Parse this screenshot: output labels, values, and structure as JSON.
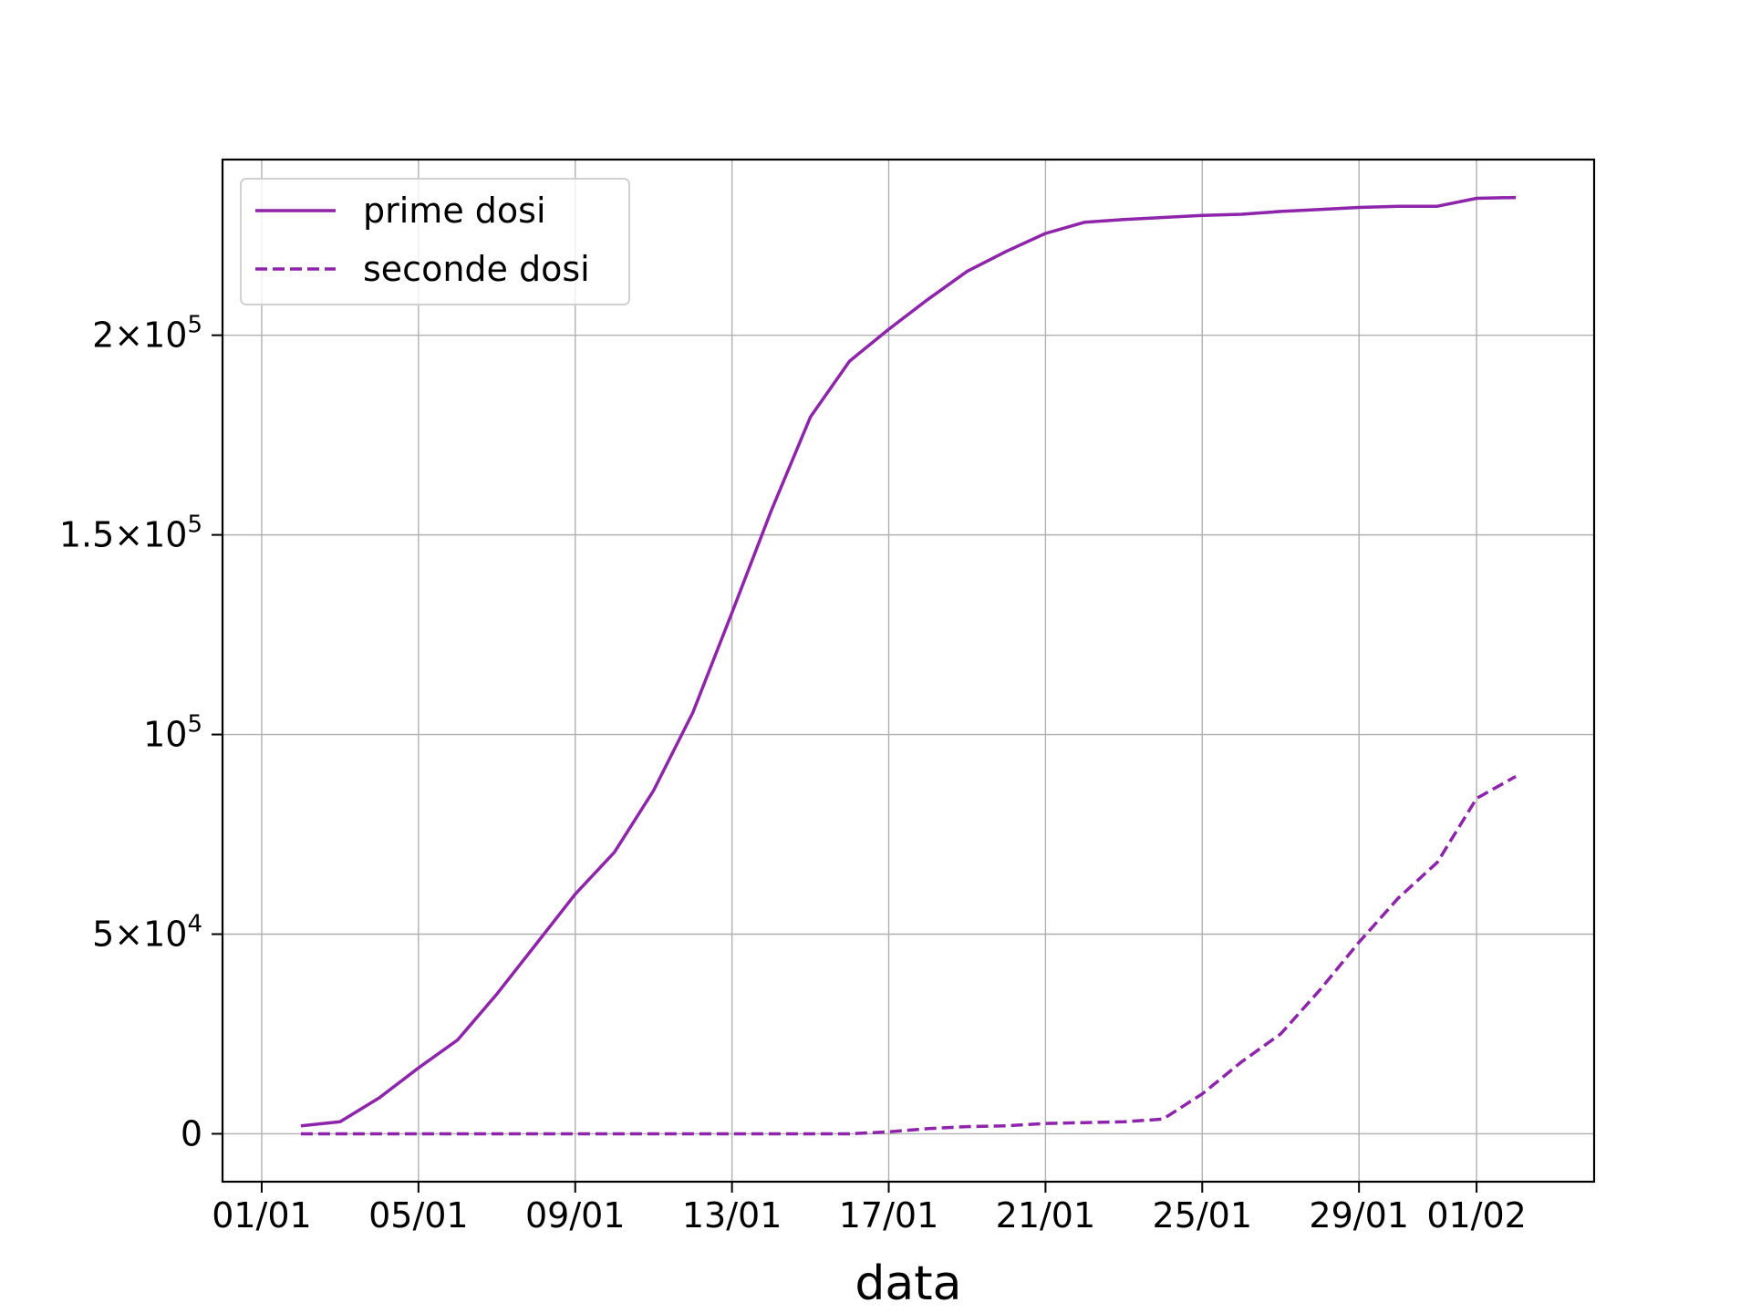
{
  "chart_data": {
    "type": "line",
    "title": "",
    "xlabel": "data",
    "ylabel": "",
    "grid": true,
    "legend_placement": "upper-left",
    "x_range": [
      "2020-12-31",
      "2021-02-04"
    ],
    "ylim": [
      -12000,
      244000
    ],
    "x_ticks": [
      {
        "date": "2021-01-01",
        "label": "01/01"
      },
      {
        "date": "2021-01-05",
        "label": "05/01"
      },
      {
        "date": "2021-01-09",
        "label": "09/01"
      },
      {
        "date": "2021-01-13",
        "label": "13/01"
      },
      {
        "date": "2021-01-17",
        "label": "17/01"
      },
      {
        "date": "2021-01-21",
        "label": "21/01"
      },
      {
        "date": "2021-01-25",
        "label": "25/01"
      },
      {
        "date": "2021-01-29",
        "label": "29/01"
      },
      {
        "date": "2021-02-01",
        "label": "01/02"
      }
    ],
    "y_ticks": [
      {
        "value": 0,
        "mant": "0",
        "exp": ""
      },
      {
        "value": 50000,
        "mant": "5×10",
        "exp": "4"
      },
      {
        "value": 100000,
        "mant": "10",
        "exp": "5"
      },
      {
        "value": 150000,
        "mant": "1.5×10",
        "exp": "5"
      },
      {
        "value": 200000,
        "mant": "2×10",
        "exp": "5"
      }
    ],
    "x": [
      "2021-01-02",
      "2021-01-03",
      "2021-01-04",
      "2021-01-05",
      "2021-01-06",
      "2021-01-07",
      "2021-01-08",
      "2021-01-09",
      "2021-01-10",
      "2021-01-11",
      "2021-01-12",
      "2021-01-13",
      "2021-01-14",
      "2021-01-15",
      "2021-01-16",
      "2021-01-17",
      "2021-01-18",
      "2021-01-19",
      "2021-01-20",
      "2021-01-21",
      "2021-01-22",
      "2021-01-23",
      "2021-01-24",
      "2021-01-25",
      "2021-01-26",
      "2021-01-27",
      "2021-01-28",
      "2021-01-29",
      "2021-01-30",
      "2021-01-31",
      "2021-02-01",
      "2021-02-02"
    ],
    "series": [
      {
        "name": "prime dosi",
        "style": "solid",
        "color": "#8e24aa",
        "values": [
          2000,
          3000,
          9000,
          16500,
          23500,
          35000,
          47500,
          60000,
          70500,
          86000,
          105500,
          130500,
          156000,
          179500,
          193500,
          201500,
          209000,
          216000,
          221000,
          225500,
          228300,
          229000,
          229500,
          230000,
          230300,
          231000,
          231500,
          232000,
          232300,
          232300,
          234300,
          234500
        ]
      },
      {
        "name": "seconde dosi",
        "style": "dashed",
        "color": "#8e24aa",
        "values": [
          0,
          0,
          0,
          0,
          0,
          0,
          0,
          0,
          0,
          0,
          0,
          0,
          0,
          0,
          0,
          500,
          1300,
          1800,
          2000,
          2600,
          2800,
          3000,
          3700,
          10000,
          18000,
          25000,
          36000,
          48000,
          59000,
          68000,
          84000,
          89500
        ]
      }
    ]
  }
}
